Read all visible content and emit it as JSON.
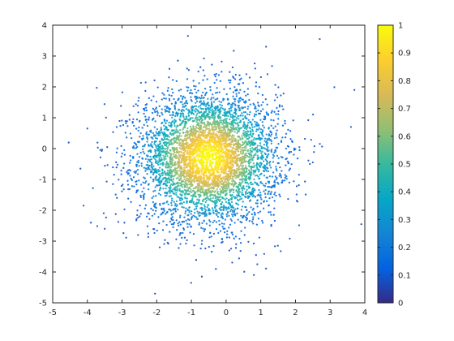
{
  "chart_data": {
    "type": "scatter",
    "title": "",
    "xlabel": "",
    "ylabel": "",
    "xlim": [
      -5,
      4
    ],
    "ylim": [
      -5,
      4
    ],
    "x_ticks": [
      "-5",
      "-4",
      "-3",
      "-2",
      "-1",
      "0",
      "1",
      "2",
      "3",
      "4"
    ],
    "y_ticks": [
      "-5",
      "-4",
      "-3",
      "-2",
      "-1",
      "0",
      "1",
      "2",
      "3",
      "4"
    ],
    "grid": false,
    "point_color_encoding": "normalized point density (colormap parula)",
    "density_center": {
      "x": -0.5,
      "y": -0.3
    },
    "density_spread": {
      "sx": 1.0,
      "sy": 1.05
    },
    "num_points_approx": 5000,
    "representative_outliers": [
      {
        "x": -4.2,
        "y": -0.65
      },
      {
        "x": -4.0,
        "y": 0.65
      },
      {
        "x": -3.9,
        "y": -2.4
      },
      {
        "x": -3.5,
        "y": -2.6
      },
      {
        "x": -1.1,
        "y": 3.65
      },
      {
        "x": -0.7,
        "y": -4.15
      },
      {
        "x": 0.8,
        "y": -4.1
      },
      {
        "x": 0.9,
        "y": -3.75
      },
      {
        "x": 2.7,
        "y": 3.55
      },
      {
        "x": 3.7,
        "y": 1.9
      },
      {
        "x": 3.9,
        "y": -2.45
      },
      {
        "x": 3.6,
        "y": 0.7
      }
    ],
    "colorbar": {
      "colormap": "parula",
      "range": [
        0,
        1
      ],
      "ticks": [
        "0",
        "0.1",
        "0.2",
        "0.3",
        "0.4",
        "0.5",
        "0.6",
        "0.7",
        "0.8",
        "0.9",
        "1"
      ],
      "stops": [
        "#352a87",
        "#0363e1",
        "#1485d4",
        "#06a7c6",
        "#38b99e",
        "#92bf73",
        "#d9ba56",
        "#fcce2e",
        "#f9fb0e"
      ]
    }
  }
}
